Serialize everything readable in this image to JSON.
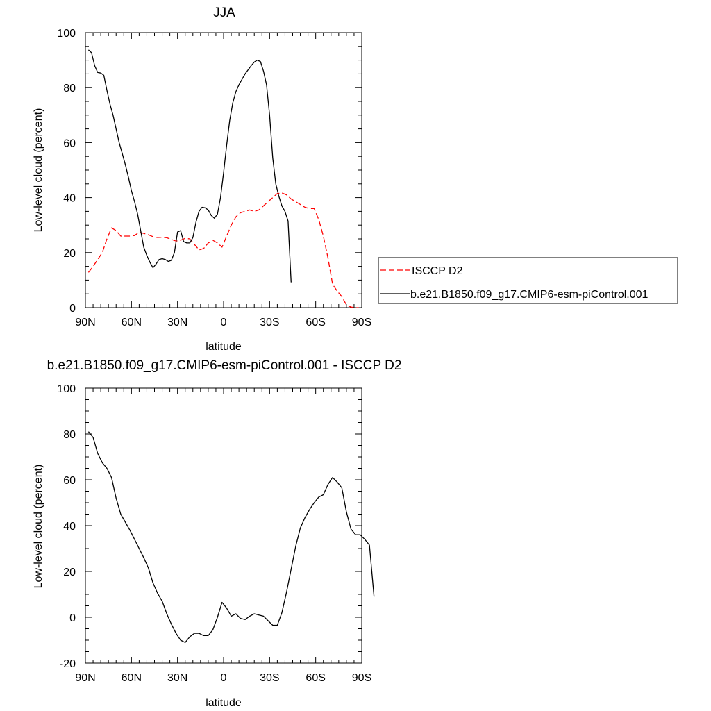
{
  "chart_data": [
    {
      "type": "line",
      "title": "JJA",
      "xlabel": "latitude",
      "ylabel": "Low-level cloud (percent)",
      "xlim": [
        90,
        -90
      ],
      "ylim": [
        0,
        100
      ],
      "xticks": [
        {
          "value": 90,
          "label": "90N"
        },
        {
          "value": 60,
          "label": "60N"
        },
        {
          "value": 30,
          "label": "30N"
        },
        {
          "value": 0,
          "label": "0"
        },
        {
          "value": -30,
          "label": "30S"
        },
        {
          "value": -60,
          "label": "60S"
        },
        {
          "value": -90,
          "label": "90S"
        }
      ],
      "yticks": [
        0,
        20,
        40,
        60,
        80,
        100
      ],
      "grid": false,
      "legend": "right",
      "series": [
        {
          "name": "ISCCP D2",
          "color": "#ff0000",
          "dash": "dashed",
          "points": [
            [
              88,
              12.8
            ],
            [
              85,
              15
            ],
            [
              82,
              17.5
            ],
            [
              79,
              20
            ],
            [
              76,
              25
            ],
            [
              73,
              29
            ],
            [
              70,
              28
            ],
            [
              67,
              26
            ],
            [
              64,
              26
            ],
            [
              61,
              26
            ],
            [
              58,
              26.2
            ],
            [
              55,
              27.4
            ],
            [
              52,
              27
            ],
            [
              49,
              26.5
            ],
            [
              46,
              25.8
            ],
            [
              43,
              25.5
            ],
            [
              40,
              25.6
            ],
            [
              37,
              25.4
            ],
            [
              34,
              24.8
            ],
            [
              31,
              24.2
            ],
            [
              28,
              24.5
            ],
            [
              25,
              25.2
            ],
            [
              22,
              25
            ],
            [
              19,
              23
            ],
            [
              16,
              21
            ],
            [
              13,
              21.5
            ],
            [
              10,
              23.5
            ],
            [
              7,
              24.5
            ],
            [
              4,
              23.5
            ],
            [
              1,
              22
            ],
            [
              -2,
              26
            ],
            [
              -5,
              30
            ],
            [
              -8,
              33
            ],
            [
              -11,
              34.5
            ],
            [
              -14,
              35
            ],
            [
              -17,
              35.5
            ],
            [
              -20,
              35
            ],
            [
              -23,
              35.5
            ],
            [
              -26,
              37
            ],
            [
              -29,
              38.5
            ],
            [
              -32,
              40
            ],
            [
              -35,
              41.5
            ],
            [
              -38,
              41.7
            ],
            [
              -41,
              41
            ],
            [
              -44,
              39.5
            ],
            [
              -47,
              38.5
            ],
            [
              -50,
              37.5
            ],
            [
              -53,
              36.5
            ],
            [
              -56,
              36
            ],
            [
              -59,
              36
            ],
            [
              -62,
              32
            ],
            [
              -65,
              26
            ],
            [
              -68,
              18
            ],
            [
              -71,
              8.5
            ],
            [
              -74,
              6
            ],
            [
              -77,
              4
            ],
            [
              -80,
              1
            ],
            [
              -83,
              0.2
            ],
            [
              -86,
              0
            ],
            [
              -88,
              0
            ]
          ]
        },
        {
          "name": "b.e21.B1850.f09_g17.CMIP6-esm-piControl.001",
          "color": "#000000",
          "dash": "solid",
          "points": [
            [
              88,
              93.7
            ],
            [
              86,
              92.7
            ],
            [
              84,
              88
            ],
            [
              82,
              85.5
            ],
            [
              80,
              85.3
            ],
            [
              78,
              84.5
            ],
            [
              76,
              79
            ],
            [
              74,
              74
            ],
            [
              72,
              70
            ],
            [
              70,
              65
            ],
            [
              68,
              60
            ],
            [
              66,
              56
            ],
            [
              64,
              52
            ],
            [
              62,
              47.5
            ],
            [
              60,
              42.5
            ],
            [
              58,
              38.5
            ],
            [
              56,
              34
            ],
            [
              54,
              28
            ],
            [
              52,
              22
            ],
            [
              50,
              19
            ],
            [
              48,
              16.5
            ],
            [
              46,
              14.5
            ],
            [
              44,
              15.8
            ],
            [
              42,
              17.5
            ],
            [
              40,
              17.8
            ],
            [
              38,
              17.5
            ],
            [
              36,
              16.8
            ],
            [
              34,
              17.2
            ],
            [
              32,
              20
            ],
            [
              30,
              27.5
            ],
            [
              28,
              28
            ],
            [
              26,
              24
            ],
            [
              24,
              23.5
            ],
            [
              22,
              23.5
            ],
            [
              20,
              25.5
            ],
            [
              18,
              31
            ],
            [
              16,
              35
            ],
            [
              14,
              36.5
            ],
            [
              12,
              36.3
            ],
            [
              10,
              35.5
            ],
            [
              8,
              33.5
            ],
            [
              6,
              32.5
            ],
            [
              4,
              34
            ],
            [
              2,
              40
            ],
            [
              0,
              49
            ],
            [
              -2,
              59
            ],
            [
              -4,
              68
            ],
            [
              -6,
              74.5
            ],
            [
              -8,
              78.5
            ],
            [
              -10,
              81
            ],
            [
              -12,
              83
            ],
            [
              -14,
              85
            ],
            [
              -16,
              86.5
            ],
            [
              -18,
              88
            ],
            [
              -20,
              89.3
            ],
            [
              -22,
              90
            ],
            [
              -24,
              89.5
            ],
            [
              -26,
              86
            ],
            [
              -28,
              81
            ],
            [
              -30,
              70
            ],
            [
              -32,
              54.5
            ],
            [
              -34,
              45
            ],
            [
              -36,
              40.5
            ],
            [
              -38,
              37
            ],
            [
              -40,
              35
            ],
            [
              -42,
              31.5
            ],
            [
              -44,
              9.2
            ]
          ]
        }
      ]
    },
    {
      "type": "line",
      "title": "b.e21.B1850.f09_g17.CMIP6-esm-piControl.001 - ISCCP D2",
      "xlabel": "latitude",
      "ylabel": "Low-level cloud (percent)",
      "xlim": [
        90,
        -90
      ],
      "ylim": [
        -20,
        100
      ],
      "xticks": [
        {
          "value": 90,
          "label": "90N"
        },
        {
          "value": 60,
          "label": "60N"
        },
        {
          "value": 30,
          "label": "30N"
        },
        {
          "value": 0,
          "label": "0"
        },
        {
          "value": -30,
          "label": "30S"
        },
        {
          "value": -60,
          "label": "60S"
        },
        {
          "value": -90,
          "label": "90S"
        }
      ],
      "yticks": [
        -20,
        0,
        20,
        40,
        60,
        80,
        100
      ],
      "grid": false,
      "series": [
        {
          "color": "#000000",
          "dash": "solid",
          "points": [
            [
              88,
              81
            ],
            [
              85,
              78.5
            ],
            [
              82,
              71.5
            ],
            [
              79,
              67.5
            ],
            [
              76,
              65
            ],
            [
              73,
              61
            ],
            [
              70,
              52
            ],
            [
              67,
              45
            ],
            [
              64,
              41.5
            ],
            [
              61,
              38
            ],
            [
              58,
              34
            ],
            [
              55,
              30
            ],
            [
              52,
              26
            ],
            [
              49,
              21.5
            ],
            [
              46,
              15
            ],
            [
              43,
              10.5
            ],
            [
              40,
              7
            ],
            [
              37,
              1.5
            ],
            [
              34,
              -3
            ],
            [
              31,
              -7
            ],
            [
              28,
              -10
            ],
            [
              25,
              -11
            ],
            [
              22,
              -8.5
            ],
            [
              19,
              -7
            ],
            [
              16,
              -7
            ],
            [
              13,
              -8
            ],
            [
              10,
              -8
            ],
            [
              7,
              -5.5
            ],
            [
              4,
              0
            ],
            [
              1,
              6.5
            ],
            [
              -2,
              4
            ],
            [
              -5,
              0.5
            ],
            [
              -8,
              1.5
            ],
            [
              -11,
              -0.5
            ],
            [
              -14,
              -1
            ],
            [
              -17,
              0.5
            ],
            [
              -20,
              1.5
            ],
            [
              -23,
              1
            ],
            [
              -26,
              0.5
            ],
            [
              -29,
              -1.5
            ],
            [
              -32,
              -3.5
            ],
            [
              -35,
              -3.5
            ],
            [
              -38,
              2
            ],
            [
              -41,
              11
            ],
            [
              -44,
              21
            ],
            [
              -47,
              31
            ],
            [
              -50,
              39
            ],
            [
              -53,
              43.5
            ],
            [
              -56,
              47
            ],
            [
              -59,
              50
            ],
            [
              -62,
              52.5
            ],
            [
              -65,
              53.5
            ],
            [
              -68,
              58
            ],
            [
              -71,
              61
            ],
            [
              -74,
              59
            ],
            [
              -77,
              56.5
            ],
            [
              -80,
              46
            ],
            [
              -83,
              38.5
            ],
            [
              -86,
              36
            ],
            [
              -89,
              36
            ],
            [
              -92,
              34
            ],
            [
              -95,
              31.5
            ],
            [
              -98,
              9
            ]
          ]
        }
      ]
    }
  ]
}
